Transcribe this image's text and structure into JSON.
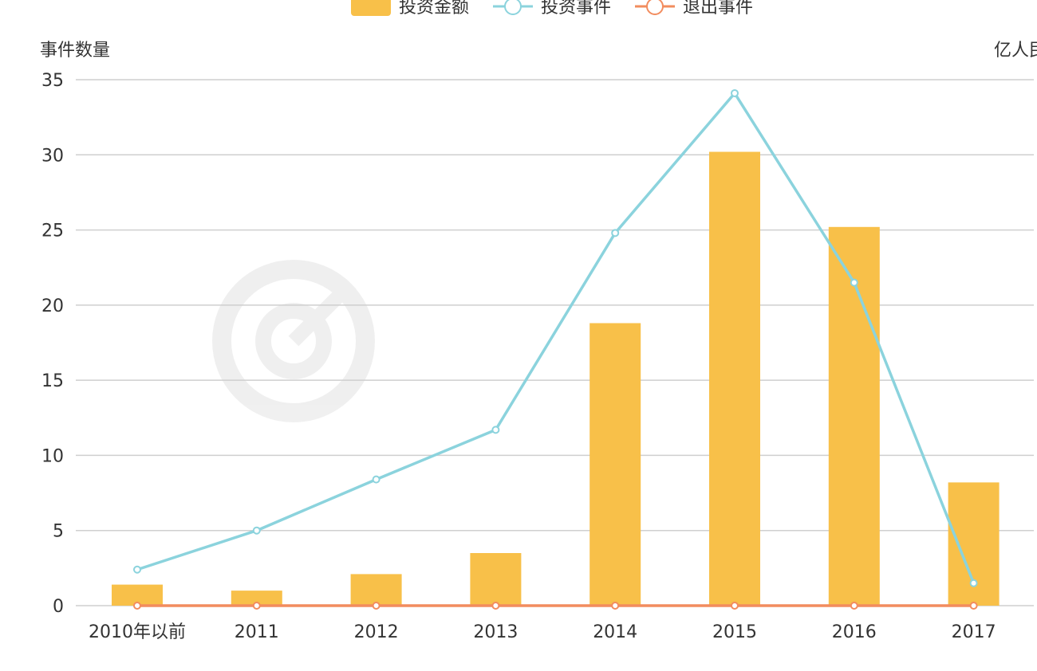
{
  "chart_data": {
    "type": "bar",
    "categories": [
      "2010年以前",
      "2011",
      "2012",
      "2013",
      "2014",
      "2015",
      "2016",
      "2017"
    ],
    "series": [
      {
        "name": "投资金额",
        "type": "bar",
        "axis": "right",
        "color": "#F8C049",
        "values": [
          1.4,
          1.0,
          2.1,
          3.5,
          18.8,
          30.2,
          25.2,
          8.2
        ]
      },
      {
        "name": "投资事件",
        "type": "line",
        "axis": "left",
        "color": "#8BD3DD",
        "values": [
          2.4,
          5,
          8.4,
          11.7,
          24.8,
          34.1,
          21.5,
          1.5
        ]
      },
      {
        "name": "退出事件",
        "type": "line",
        "axis": "left",
        "color": "#F28C5E",
        "values": [
          0,
          0,
          0,
          0,
          0,
          0,
          0,
          0
        ]
      }
    ],
    "ylabel": "事件数量",
    "y2label": "亿人民币",
    "yticks": [
      0,
      5,
      10,
      15,
      20,
      25,
      30,
      35
    ],
    "ylim": [
      0,
      35
    ],
    "grid": true,
    "legend_position": "top-center"
  }
}
